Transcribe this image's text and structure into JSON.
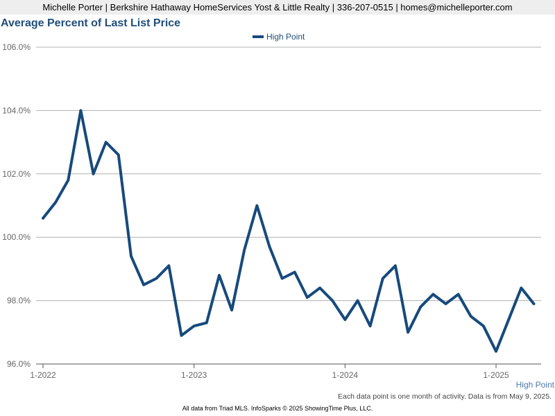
{
  "header": {
    "text": "Michelle Porter | Berkshire Hathaway HomeServices Yost & Little Realty | 336-207-0515 | homes@michelleporter.com"
  },
  "footnote": "Each data point is one month of activity. Data is from May 9, 2025.",
  "footer": "All data from Triad MLS. InfoSparks © 2025 ShowingTime Plus, LLC.",
  "series_color": "#174a7c",
  "chart_data": {
    "type": "line",
    "title": "Average Percent of Last List Price",
    "xlabel": "",
    "ylabel": "",
    "ylim": [
      96.0,
      106.0
    ],
    "yticks": [
      96.0,
      98.0,
      100.0,
      102.0,
      104.0,
      106.0
    ],
    "y_tick_labels": [
      "96.0%",
      "98.0%",
      "100.0%",
      "102.0%",
      "104.0%",
      "106.0%"
    ],
    "x_tick_labels": [
      "1-2022",
      "1-2023",
      "1-2024",
      "1-2025"
    ],
    "legend_position": "top-center",
    "grid": true,
    "x": [
      "1-2022",
      "2-2022",
      "3-2022",
      "4-2022",
      "5-2022",
      "6-2022",
      "7-2022",
      "8-2022",
      "9-2022",
      "10-2022",
      "11-2022",
      "12-2022",
      "1-2023",
      "2-2023",
      "3-2023",
      "4-2023",
      "5-2023",
      "6-2023",
      "7-2023",
      "8-2023",
      "9-2023",
      "10-2023",
      "11-2023",
      "12-2023",
      "1-2024",
      "2-2024",
      "3-2024",
      "4-2024",
      "5-2024",
      "6-2024",
      "7-2024",
      "8-2024",
      "9-2024",
      "10-2024",
      "11-2024",
      "12-2024",
      "1-2025",
      "2-2025",
      "3-2025",
      "4-2025"
    ],
    "series": [
      {
        "name": "High Point",
        "values": [
          100.6,
          101.1,
          101.8,
          104.0,
          102.0,
          103.0,
          102.6,
          99.4,
          98.5,
          98.7,
          99.1,
          96.9,
          97.2,
          97.3,
          98.8,
          97.7,
          99.6,
          101.0,
          99.7,
          98.7,
          98.9,
          98.1,
          98.4,
          98.0,
          97.4,
          98.0,
          97.2,
          98.7,
          99.1,
          97.0,
          97.8,
          98.2,
          97.9,
          98.2,
          97.5,
          97.2,
          96.4,
          97.4,
          98.4,
          97.9
        ]
      }
    ]
  }
}
